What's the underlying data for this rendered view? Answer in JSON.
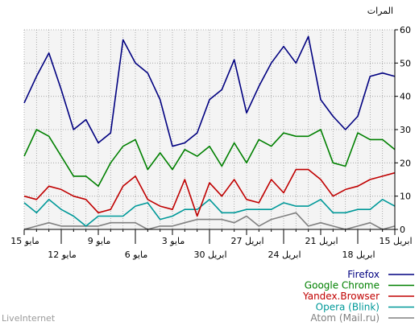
{
  "chart_data": {
    "type": "line",
    "y_unit": "المرات",
    "ylim": [
      0,
      60
    ],
    "y_ticks": [
      0,
      10,
      20,
      30,
      40,
      50,
      60
    ],
    "x_labels_row1": [
      {
        "label": "15 مايو",
        "i": 0
      },
      {
        "label": "9 مايو",
        "i": 6
      },
      {
        "label": "3 مايو",
        "i": 12
      },
      {
        "label": "27 ابريل",
        "i": 18
      },
      {
        "label": "21 ابريل",
        "i": 24
      },
      {
        "label": "15 ابريل",
        "i": 30
      }
    ],
    "x_labels_row2": [
      {
        "label": "12 مايو",
        "i": 3
      },
      {
        "label": "6 مايو",
        "i": 9
      },
      {
        "label": "30 ابريل",
        "i": 15
      },
      {
        "label": "24 ابريل",
        "i": 21
      },
      {
        "label": "18 ابريل",
        "i": 27
      }
    ],
    "grid": true,
    "legend": "bottom-right",
    "series": [
      {
        "name": "Firefox",
        "color": "#000080",
        "values": [
          38,
          46,
          53,
          42,
          30,
          33,
          26,
          29,
          57,
          50,
          47,
          39,
          25,
          26,
          29,
          39,
          42,
          51,
          35,
          43,
          50,
          55,
          50,
          58,
          39,
          34,
          30,
          34,
          46,
          47,
          46
        ]
      },
      {
        "name": "Google Chrome",
        "color": "#008000",
        "values": [
          22,
          30,
          28,
          22,
          16,
          16,
          13,
          20,
          25,
          27,
          18,
          23,
          18,
          24,
          22,
          25,
          19,
          26,
          20,
          27,
          25,
          29,
          28,
          28,
          30,
          20,
          19,
          29,
          27,
          27,
          24
        ]
      },
      {
        "name": "Yandex.Browser",
        "color": "#c00000",
        "values": [
          10,
          9,
          13,
          12,
          10,
          9,
          5,
          6,
          13,
          16,
          9,
          7,
          6,
          15,
          4,
          14,
          10,
          15,
          9,
          8,
          15,
          11,
          18,
          18,
          15,
          10,
          12,
          13,
          15,
          16,
          17
        ]
      },
      {
        "name": "Opera (Blink)",
        "color": "#009999",
        "values": [
          8,
          5,
          9,
          6,
          4,
          1,
          4,
          4,
          4,
          7,
          8,
          3,
          4,
          6,
          6,
          9,
          5,
          5,
          6,
          6,
          6,
          8,
          7,
          7,
          9,
          5,
          5,
          6,
          6,
          9,
          7
        ]
      },
      {
        "name": "Atom (Mail.ru)",
        "color": "#808080",
        "values": [
          0,
          1,
          2,
          1,
          1,
          1,
          1,
          2,
          2,
          2,
          0,
          1,
          1,
          2,
          3,
          3,
          3,
          2,
          4,
          1,
          3,
          4,
          5,
          1,
          2,
          1,
          0,
          1,
          2,
          0,
          1
        ]
      }
    ]
  },
  "footer": {
    "brand": "LiveInternet"
  }
}
